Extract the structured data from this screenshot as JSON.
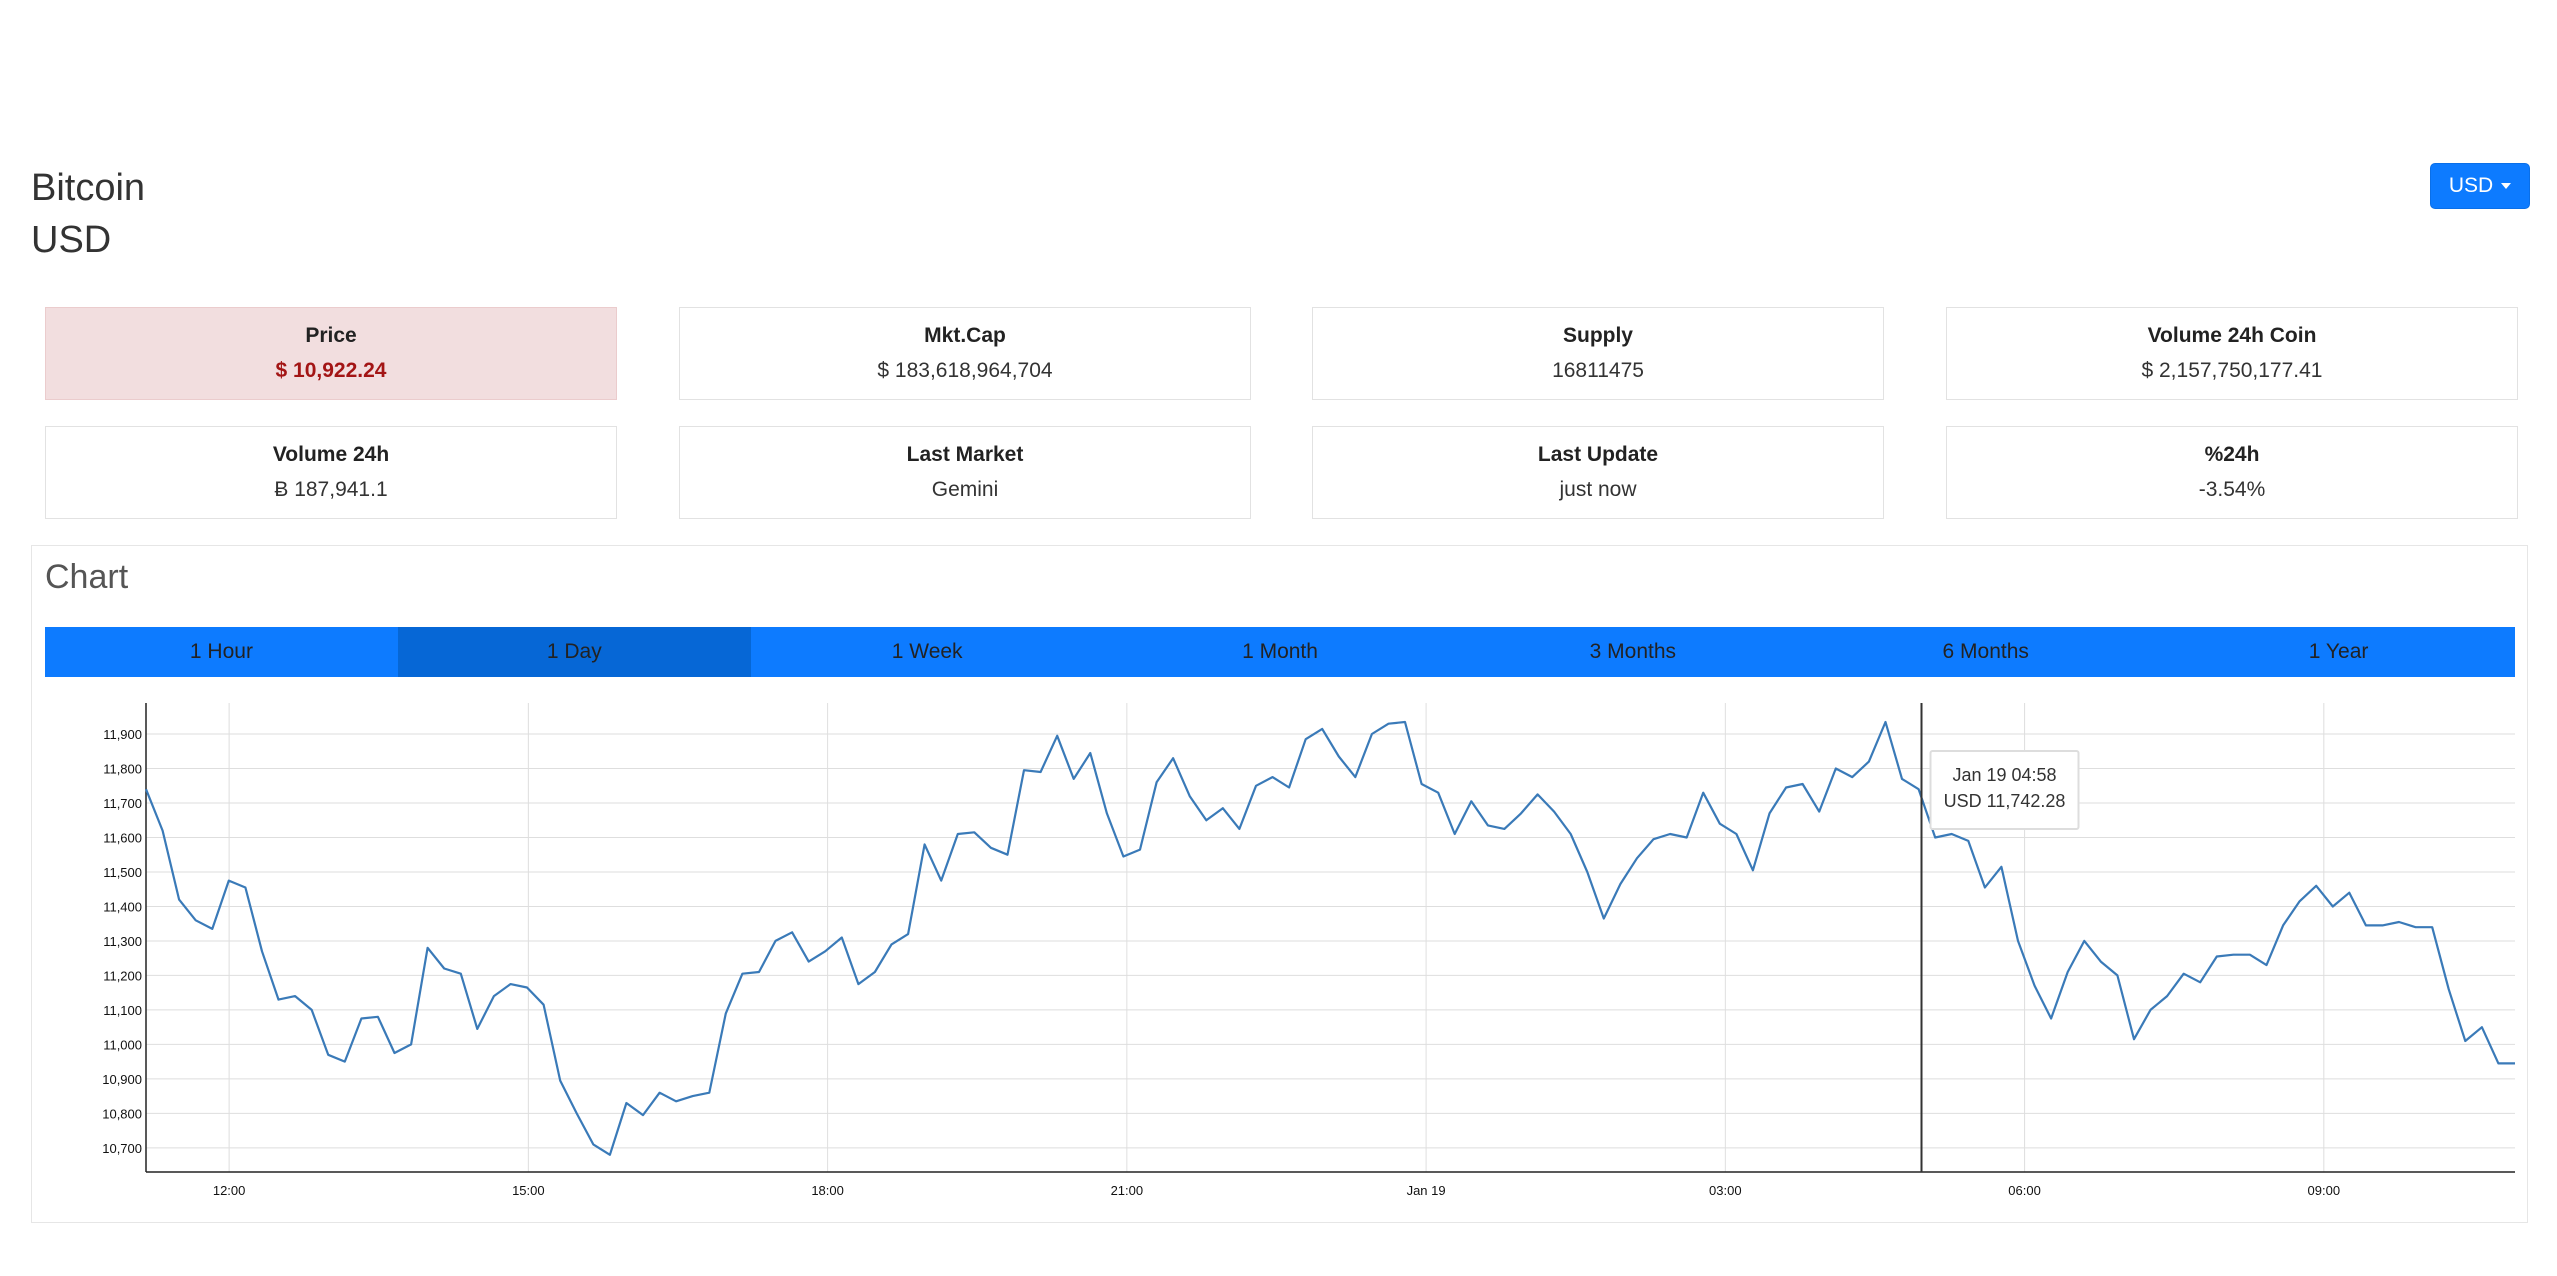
{
  "header": {
    "coin": "Bitcoin",
    "currency": "USD"
  },
  "currency_selector": {
    "label": "USD"
  },
  "stats": [
    {
      "label": "Price",
      "value": "$ 10,922.24"
    },
    {
      "label": "Mkt.Cap",
      "value": "$ 183,618,964,704"
    },
    {
      "label": "Supply",
      "value": "16811475"
    },
    {
      "label": "Volume 24h Coin",
      "value": "$ 2,157,750,177.41"
    },
    {
      "label": "Volume 24h",
      "value": "Ƀ 187,941.1"
    },
    {
      "label": "Last Market",
      "value": "Gemini"
    },
    {
      "label": "Last Update",
      "value": "just now"
    },
    {
      "label": "%24h",
      "value": "-3.54%"
    }
  ],
  "chart_section": {
    "heading": "Chart",
    "tabs": [
      "1 Hour",
      "1 Day",
      "1 Week",
      "1 Month",
      "3 Months",
      "6 Months",
      "1 Year"
    ],
    "active_tab": "1 Day"
  },
  "colors": {
    "accent": "#0d7bff",
    "accent_active": "#0667d6",
    "price_highlight": "#f2dedf",
    "price_text": "#a31515",
    "line": "#3a7ab8"
  },
  "tooltip": {
    "time": "Jan 19 04:58",
    "value": "USD 11,742.28"
  },
  "chart_data": {
    "type": "line",
    "title": "",
    "xlabel": "",
    "ylabel": "",
    "x_start": "11:10",
    "x_end": "10:55",
    "x_ticks": [
      "12:00",
      "15:00",
      "18:00",
      "21:00",
      "Jan 19",
      "03:00",
      "06:00",
      "09:00"
    ],
    "y_ticks": [
      "10,700",
      "10,800",
      "10,900",
      "11,000",
      "11,100",
      "11,200",
      "11,300",
      "11,400",
      "11,500",
      "11,600",
      "11,700",
      "11,800",
      "11,900"
    ],
    "ylim": [
      10630,
      11990
    ],
    "grid": true,
    "crosshair_at": "04:58",
    "series": [
      {
        "values": [
          11740,
          11620,
          11420,
          11360,
          11335,
          11475,
          11455,
          11270,
          11130,
          11140,
          11100,
          10970,
          10950,
          11075,
          11080,
          10975,
          11000,
          11280,
          11220,
          11205,
          11045,
          11140,
          11175,
          11165,
          11115,
          10895,
          10800,
          10710,
          10680,
          10830,
          10795,
          10860,
          10835,
          10850,
          10860,
          11090,
          11205,
          11210,
          11300,
          11325,
          11240,
          11270,
          11310,
          11175,
          11210,
          11290,
          11320,
          11580,
          11475,
          11610,
          11615,
          11570,
          11550,
          11795,
          11790,
          11895,
          11770,
          11845,
          11670,
          11545,
          11565,
          11760,
          11830,
          11720,
          11650,
          11685,
          11625,
          11750,
          11775,
          11745,
          11885,
          11915,
          11835,
          11775,
          11900,
          11930,
          11935,
          11755,
          11730,
          11610,
          11705,
          11635,
          11625,
          11670,
          11725,
          11675,
          11610,
          11500,
          11365,
          11465,
          11540,
          11595,
          11610,
          11600,
          11730,
          11640,
          11610,
          11505,
          11670,
          11745,
          11755,
          11675,
          11800,
          11775,
          11820,
          11935,
          11770,
          11740,
          11600,
          11610,
          11590,
          11455,
          11515,
          11300,
          11170,
          11075,
          11210,
          11300,
          11240,
          11200,
          11015,
          11100,
          11140,
          11205,
          11180,
          11255,
          11260,
          11260,
          11230,
          11345,
          11415,
          11460,
          11400,
          11440,
          11345,
          11345,
          11355,
          11340,
          11340,
          11160,
          11010,
          11050,
          10945,
          10945
        ]
      }
    ]
  }
}
